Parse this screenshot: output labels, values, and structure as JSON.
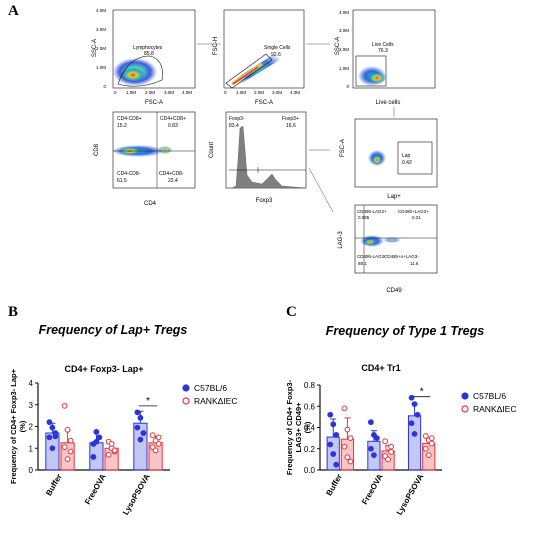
{
  "figure": {
    "panel_a": "A",
    "panel_b": "B",
    "panel_c": "C"
  },
  "facs": {
    "lymph": {
      "y_label": "SSC-A",
      "x_label": "FSC-A",
      "gate_name": "Lymphocytes",
      "gate_value": "85.8",
      "y_ticks": [
        "4.0M",
        "3.0M",
        "2.0M",
        "1.0M",
        "0"
      ],
      "x_ticks": [
        "0",
        "1.0M",
        "2.0M",
        "3.0M",
        "4.0M"
      ]
    },
    "single": {
      "y_label": "FSC-H",
      "x_label": "FSC-A",
      "gate_name": "Single Cells",
      "gate_value": "92.6",
      "x_ticks": [
        "0",
        "1.0M",
        "2.0M",
        "3.0M",
        "4.0M"
      ]
    },
    "live": {
      "y_label": "SSC-A",
      "x_label": "Live cells",
      "gate_name": "Live Cells",
      "gate_value": "76.3",
      "y_ticks": [
        "4.0M",
        "3.0M",
        "2.0M",
        "1.0M",
        "0"
      ]
    },
    "cd4cd8": {
      "y_label": "CD8",
      "x_label": "CD4",
      "q_ul_name": "CD4-CD8+",
      "q_ul_val": "15.2",
      "q_ur_name": "CD4+CD8+",
      "q_ur_val": "0.83",
      "q_ll_name": "CD4-CD8-",
      "q_ll_val": "61.5",
      "q_lr_name": "CD4+CD8-",
      "q_lr_val": "22.4"
    },
    "foxp3": {
      "y_label": "Count",
      "x_label": "Foxp3",
      "neg_name": "Foxp3-",
      "neg_val": "83.4",
      "pos_name": "Foxp3+",
      "pos_val": "16.6"
    },
    "lap": {
      "y_label": "FSC-A",
      "x_label": "Lap+",
      "gate_name": "Lap",
      "gate_value": "0.42"
    },
    "lag3": {
      "y_label": "LAG-3",
      "x_label": "CD49",
      "q_ul_name": "CD49b-LAG3+",
      "q_ul_val": "0.085",
      "q_ur_name": "CD49b+LAG3+",
      "q_ur_val": "0.21",
      "q_ll_name": "CD49b-LAG3-",
      "q_ll_val": "88.1",
      "q_lr_name": "CD49b+o+LAG3-",
      "q_lr_val": "11.6"
    }
  },
  "chart_data": [
    {
      "type": "bar",
      "panel": "B",
      "title": "Frequency of Lap+ Tregs",
      "subtitle": "CD4+ Foxp3- Lap+",
      "ylabel": "Frequency of CD4+ Foxp3- Lap+ (%)",
      "categories": [
        "Buffer",
        "FreeOVA",
        "LysoPSOVA"
      ],
      "ylim": [
        0,
        4
      ],
      "yticks": [
        0,
        1,
        2,
        3,
        4
      ],
      "significance": "*",
      "series": [
        {
          "name": "C57BL/6",
          "color": "#2a36d8",
          "values": [
            1.7,
            1.25,
            2.15
          ],
          "errors": [
            0.45,
            0.5,
            0.55
          ],
          "points": [
            [
              2.2,
              1.95,
              1.7,
              1.5,
              1.0,
              1.55
            ],
            [
              1.2,
              1.75,
              1.5,
              0.6,
              1.3
            ],
            [
              2.65,
              2.4,
              1.7,
              1.95,
              1.4
            ]
          ]
        },
        {
          "name": "RANKΔIEC",
          "color": "#e8323a",
          "values": [
            1.25,
            1.0,
            1.25
          ],
          "errors": [
            0.6,
            0.25,
            0.3
          ],
          "points": [
            [
              2.95,
              1.85,
              1.35,
              1.05,
              0.5,
              0.85
            ],
            [
              1.3,
              1.0,
              0.85,
              0.7,
              1.2,
              0.9
            ],
            [
              1.6,
              1.35,
              1.2,
              1.05,
              0.9,
              1.5
            ]
          ]
        }
      ]
    },
    {
      "type": "bar",
      "panel": "C",
      "title": "Frequency of Type 1 Tregs",
      "subtitle": "CD4+ Tr1",
      "ylabel": "Frequency of CD4+ Foxp3- LAG3+ CD49+ (%)",
      "categories": [
        "Buffer",
        "FreeOVA",
        "LysoPSOVA"
      ],
      "ylim": [
        0,
        0.8
      ],
      "yticks": [
        0.0,
        0.2,
        0.4,
        0.6,
        0.8
      ],
      "significance": "*",
      "series": [
        {
          "name": "C57BL/6",
          "color": "#2a36d8",
          "values": [
            0.31,
            0.27,
            0.51
          ],
          "errors": [
            0.17,
            0.1,
            0.12
          ],
          "points": [
            [
              0.52,
              0.43,
              0.33,
              0.24,
              0.15,
              0.05
            ],
            [
              0.45,
              0.33,
              0.3,
              0.2,
              0.14
            ],
            [
              0.68,
              0.62,
              0.52,
              0.44,
              0.34
            ]
          ]
        },
        {
          "name": "RANKΔIEC",
          "color": "#e8323a",
          "values": [
            0.29,
            0.18,
            0.25
          ],
          "errors": [
            0.2,
            0.05,
            0.05
          ],
          "points": [
            [
              0.58,
              0.38,
              0.3,
              0.22,
              0.12,
              0.08
            ],
            [
              0.27,
              0.21,
              0.17,
              0.13,
              0.1,
              0.22
            ],
            [
              0.32,
              0.28,
              0.25,
              0.2,
              0.14,
              0.3
            ]
          ]
        }
      ]
    }
  ]
}
